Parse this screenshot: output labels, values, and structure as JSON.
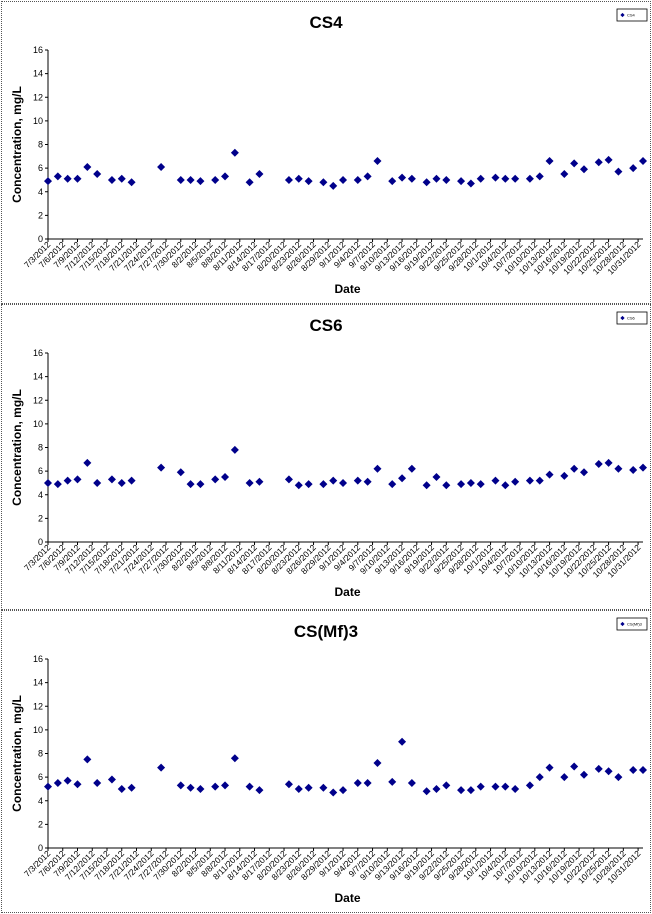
{
  "chart_data": [
    {
      "type": "scatter",
      "title": "CS4",
      "xlabel": "Date",
      "ylabel": "Concentration, mg/L",
      "ylim": [
        0,
        16
      ],
      "yticks": [
        0,
        2,
        4,
        6,
        8,
        10,
        12,
        14,
        16
      ],
      "x_range": [
        "7/3/2012",
        "11/1/2012"
      ],
      "tick_labels": [
        "7/3/2012",
        "7/6/2012",
        "7/9/2012",
        "7/12/2012",
        "7/15/2012",
        "7/18/2012",
        "7/21/2012",
        "7/24/2012",
        "7/27/2012",
        "7/30/2012",
        "8/2/2012",
        "8/5/2012",
        "8/8/2012",
        "8/11/2012",
        "8/14/2012",
        "8/17/2012",
        "8/20/2012",
        "8/23/2012",
        "8/26/2012",
        "8/29/2012",
        "9/1/2012",
        "9/4/2012",
        "9/7/2012",
        "9/10/2012",
        "9/13/2012",
        "9/16/2012",
        "9/19/2012",
        "9/22/2012",
        "9/25/2012",
        "9/28/2012",
        "10/1/2012",
        "10/4/2012",
        "10/7/2012",
        "10/10/2012",
        "10/13/2012",
        "10/16/2012",
        "10/19/2012",
        "10/22/2012",
        "10/25/2012",
        "10/28/2012",
        "10/31/2012"
      ],
      "legend_label": "CS4",
      "legend_position": "top-right",
      "grid": false,
      "marker_color": "#00008B",
      "series": [
        {
          "name": "CS4",
          "points": [
            [
              "7/3/2012",
              4.9
            ],
            [
              "7/5/2012",
              5.3
            ],
            [
              "7/7/2012",
              5.1
            ],
            [
              "7/9/2012",
              5.1
            ],
            [
              "7/11/2012",
              6.1
            ],
            [
              "7/13/2012",
              5.5
            ],
            [
              "7/16/2012",
              5.0
            ],
            [
              "7/18/2012",
              5.1
            ],
            [
              "7/20/2012",
              4.8
            ],
            [
              "7/26/2012",
              6.1
            ],
            [
              "7/30/2012",
              5.0
            ],
            [
              "8/1/2012",
              5.0
            ],
            [
              "8/3/2012",
              4.9
            ],
            [
              "8/6/2012",
              5.0
            ],
            [
              "8/8/2012",
              5.3
            ],
            [
              "8/10/2012",
              7.3
            ],
            [
              "8/13/2012",
              4.8
            ],
            [
              "8/15/2012",
              5.5
            ],
            [
              "8/21/2012",
              5.0
            ],
            [
              "8/23/2012",
              5.1
            ],
            [
              "8/25/2012",
              4.9
            ],
            [
              "8/28/2012",
              4.8
            ],
            [
              "8/30/2012",
              4.5
            ],
            [
              "9/1/2012",
              5.0
            ],
            [
              "9/4/2012",
              5.0
            ],
            [
              "9/6/2012",
              5.3
            ],
            [
              "9/8/2012",
              6.6
            ],
            [
              "9/11/2012",
              4.9
            ],
            [
              "9/13/2012",
              5.2
            ],
            [
              "9/15/2012",
              5.1
            ],
            [
              "9/18/2012",
              4.8
            ],
            [
              "9/20/2012",
              5.1
            ],
            [
              "9/22/2012",
              5.0
            ],
            [
              "9/25/2012",
              4.9
            ],
            [
              "9/27/2012",
              4.7
            ],
            [
              "9/29/2012",
              5.1
            ],
            [
              "10/2/2012",
              5.2
            ],
            [
              "10/4/2012",
              5.1
            ],
            [
              "10/6/2012",
              5.1
            ],
            [
              "10/9/2012",
              5.1
            ],
            [
              "10/11/2012",
              5.3
            ],
            [
              "10/13/2012",
              6.6
            ],
            [
              "10/16/2012",
              5.5
            ],
            [
              "10/18/2012",
              6.4
            ],
            [
              "10/20/2012",
              5.9
            ],
            [
              "10/23/2012",
              6.5
            ],
            [
              "10/25/2012",
              6.7
            ],
            [
              "10/27/2012",
              5.7
            ],
            [
              "10/30/2012",
              6.0
            ],
            [
              "11/1/2012",
              6.6
            ]
          ]
        }
      ]
    },
    {
      "type": "scatter",
      "title": "CS6",
      "xlabel": "Date",
      "ylabel": "Concentration, mg/L",
      "ylim": [
        0,
        16
      ],
      "yticks": [
        0,
        2,
        4,
        6,
        8,
        10,
        12,
        14,
        16
      ],
      "x_range": [
        "7/3/2012",
        "11/1/2012"
      ],
      "tick_labels": [
        "7/3/2012",
        "7/6/2012",
        "7/9/2012",
        "7/12/2012",
        "7/15/2012",
        "7/18/2012",
        "7/21/2012",
        "7/24/2012",
        "7/27/2012",
        "7/30/2012",
        "8/2/2012",
        "8/5/2012",
        "8/8/2012",
        "8/11/2012",
        "8/14/2012",
        "8/17/2012",
        "8/20/2012",
        "8/23/2012",
        "8/26/2012",
        "8/29/2012",
        "9/1/2012",
        "9/4/2012",
        "9/7/2012",
        "9/10/2012",
        "9/13/2012",
        "9/16/2012",
        "9/19/2012",
        "9/22/2012",
        "9/25/2012",
        "9/28/2012",
        "10/1/2012",
        "10/4/2012",
        "10/7/2012",
        "10/10/2012",
        "10/13/2012",
        "10/16/2012",
        "10/19/2012",
        "10/22/2012",
        "10/25/2012",
        "10/28/2012",
        "10/31/2012"
      ],
      "legend_label": "CS6",
      "legend_position": "top-right",
      "grid": false,
      "marker_color": "#00008B",
      "series": [
        {
          "name": "CS6",
          "points": [
            [
              "7/3/2012",
              5.0
            ],
            [
              "7/5/2012",
              4.9
            ],
            [
              "7/7/2012",
              5.2
            ],
            [
              "7/9/2012",
              5.3
            ],
            [
              "7/11/2012",
              6.7
            ],
            [
              "7/13/2012",
              5.0
            ],
            [
              "7/16/2012",
              5.3
            ],
            [
              "7/18/2012",
              5.0
            ],
            [
              "7/20/2012",
              5.2
            ],
            [
              "7/26/2012",
              6.3
            ],
            [
              "7/30/2012",
              5.9
            ],
            [
              "8/1/2012",
              4.9
            ],
            [
              "8/3/2012",
              4.9
            ],
            [
              "8/6/2012",
              5.3
            ],
            [
              "8/8/2012",
              5.5
            ],
            [
              "8/10/2012",
              7.8
            ],
            [
              "8/13/2012",
              5.0
            ],
            [
              "8/15/2012",
              5.1
            ],
            [
              "8/21/2012",
              5.3
            ],
            [
              "8/23/2012",
              4.8
            ],
            [
              "8/25/2012",
              4.9
            ],
            [
              "8/28/2012",
              4.9
            ],
            [
              "8/30/2012",
              5.2
            ],
            [
              "9/1/2012",
              5.0
            ],
            [
              "9/4/2012",
              5.2
            ],
            [
              "9/6/2012",
              5.1
            ],
            [
              "9/8/2012",
              6.2
            ],
            [
              "9/11/2012",
              4.9
            ],
            [
              "9/13/2012",
              5.4
            ],
            [
              "9/15/2012",
              6.2
            ],
            [
              "9/18/2012",
              4.8
            ],
            [
              "9/20/2012",
              5.5
            ],
            [
              "9/22/2012",
              4.8
            ],
            [
              "9/25/2012",
              4.9
            ],
            [
              "9/27/2012",
              5.0
            ],
            [
              "9/29/2012",
              4.9
            ],
            [
              "10/2/2012",
              5.2
            ],
            [
              "10/4/2012",
              4.8
            ],
            [
              "10/6/2012",
              5.1
            ],
            [
              "10/9/2012",
              5.2
            ],
            [
              "10/11/2012",
              5.2
            ],
            [
              "10/13/2012",
              5.7
            ],
            [
              "10/16/2012",
              5.6
            ],
            [
              "10/18/2012",
              6.2
            ],
            [
              "10/20/2012",
              5.9
            ],
            [
              "10/23/2012",
              6.6
            ],
            [
              "10/25/2012",
              6.7
            ],
            [
              "10/27/2012",
              6.2
            ],
            [
              "10/30/2012",
              6.1
            ],
            [
              "11/1/2012",
              6.3
            ]
          ]
        }
      ]
    },
    {
      "type": "scatter",
      "title": "CS(Mf)3",
      "xlabel": "Date",
      "ylabel": "Concentration, mg/L",
      "ylim": [
        0,
        16
      ],
      "yticks": [
        0,
        2,
        4,
        6,
        8,
        10,
        12,
        14,
        16
      ],
      "x_range": [
        "7/3/2012",
        "11/1/2012"
      ],
      "tick_labels": [
        "7/3/2012",
        "7/6/2012",
        "7/9/2012",
        "7/12/2012",
        "7/15/2012",
        "7/18/2012",
        "7/21/2012",
        "7/24/2012",
        "7/27/2012",
        "7/30/2012",
        "8/2/2012",
        "8/5/2012",
        "8/8/2012",
        "8/11/2012",
        "8/14/2012",
        "8/17/2012",
        "8/20/2012",
        "8/23/2012",
        "8/26/2012",
        "8/29/2012",
        "9/1/2012",
        "9/4/2012",
        "9/7/2012",
        "9/10/2012",
        "9/13/2012",
        "9/16/2012",
        "9/19/2012",
        "9/22/2012",
        "9/25/2012",
        "9/28/2012",
        "10/1/2012",
        "10/4/2012",
        "10/7/2012",
        "10/10/2012",
        "10/13/2012",
        "10/16/2012",
        "10/19/2012",
        "10/22/2012",
        "10/25/2012",
        "10/28/2012",
        "10/31/2012"
      ],
      "legend_label": "CS(Mf)3",
      "legend_position": "top-right",
      "grid": false,
      "marker_color": "#00008B",
      "series": [
        {
          "name": "CS(Mf)3",
          "points": [
            [
              "7/3/2012",
              5.2
            ],
            [
              "7/5/2012",
              5.5
            ],
            [
              "7/7/2012",
              5.7
            ],
            [
              "7/9/2012",
              5.4
            ],
            [
              "7/11/2012",
              7.5
            ],
            [
              "7/13/2012",
              5.5
            ],
            [
              "7/16/2012",
              5.8
            ],
            [
              "7/18/2012",
              5.0
            ],
            [
              "7/20/2012",
              5.1
            ],
            [
              "7/26/2012",
              6.8
            ],
            [
              "7/30/2012",
              5.3
            ],
            [
              "8/1/2012",
              5.1
            ],
            [
              "8/3/2012",
              5.0
            ],
            [
              "8/6/2012",
              5.2
            ],
            [
              "8/8/2012",
              5.3
            ],
            [
              "8/10/2012",
              7.6
            ],
            [
              "8/13/2012",
              5.2
            ],
            [
              "8/15/2012",
              4.9
            ],
            [
              "8/21/2012",
              5.4
            ],
            [
              "8/23/2012",
              5.0
            ],
            [
              "8/25/2012",
              5.1
            ],
            [
              "8/28/2012",
              5.1
            ],
            [
              "8/30/2012",
              4.7
            ],
            [
              "9/1/2012",
              4.9
            ],
            [
              "9/4/2012",
              5.5
            ],
            [
              "9/6/2012",
              5.5
            ],
            [
              "9/8/2012",
              7.2
            ],
            [
              "9/11/2012",
              5.6
            ],
            [
              "9/13/2012",
              9.0
            ],
            [
              "9/15/2012",
              5.5
            ],
            [
              "9/18/2012",
              4.8
            ],
            [
              "9/20/2012",
              5.0
            ],
            [
              "9/22/2012",
              5.3
            ],
            [
              "9/25/2012",
              4.9
            ],
            [
              "9/27/2012",
              4.9
            ],
            [
              "9/29/2012",
              5.2
            ],
            [
              "10/2/2012",
              5.2
            ],
            [
              "10/4/2012",
              5.2
            ],
            [
              "10/6/2012",
              5.0
            ],
            [
              "10/9/2012",
              5.3
            ],
            [
              "10/11/2012",
              6.0
            ],
            [
              "10/13/2012",
              6.8
            ],
            [
              "10/16/2012",
              6.0
            ],
            [
              "10/18/2012",
              6.9
            ],
            [
              "10/20/2012",
              6.2
            ],
            [
              "10/23/2012",
              6.7
            ],
            [
              "10/25/2012",
              6.5
            ],
            [
              "10/27/2012",
              6.0
            ],
            [
              "10/30/2012",
              6.6
            ],
            [
              "11/1/2012",
              6.6
            ]
          ]
        }
      ]
    }
  ]
}
